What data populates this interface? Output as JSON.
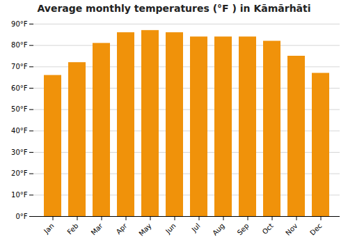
{
  "chart_data": {
    "type": "bar",
    "title": "Average monthly temperatures (°F ) in Kāmārhāti",
    "categories": [
      "Jan",
      "Feb",
      "Mar",
      "Apr",
      "May",
      "Jun",
      "Jul",
      "Aug",
      "Sep",
      "Oct",
      "Nov",
      "Dec"
    ],
    "values": [
      66,
      72,
      81,
      86,
      87,
      86,
      84,
      84,
      84,
      82,
      75,
      67
    ],
    "color": "#F0920A",
    "ylim": [
      0,
      90
    ],
    "yticks": [
      {
        "value": 0,
        "label": "0°F"
      },
      {
        "value": 10,
        "label": "10°F"
      },
      {
        "value": 20,
        "label": "20°F"
      },
      {
        "value": 30,
        "label": "30°F"
      },
      {
        "value": 40,
        "label": "40°F"
      },
      {
        "value": 50,
        "label": "50°F"
      },
      {
        "value": 60,
        "label": "60°F"
      },
      {
        "value": 70,
        "label": "70°F"
      },
      {
        "value": 80,
        "label": "80°F"
      },
      {
        "value": 90,
        "label": "90°F"
      }
    ],
    "grid": true
  }
}
